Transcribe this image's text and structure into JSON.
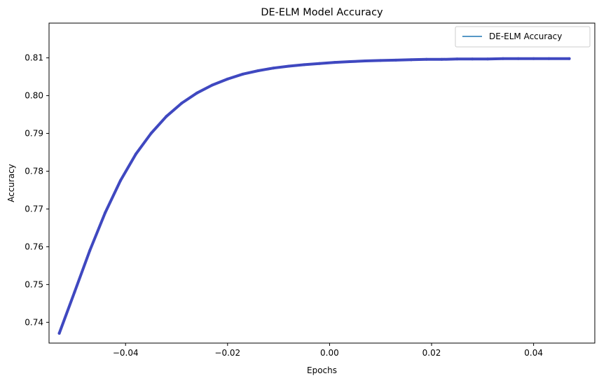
{
  "chart_data": {
    "type": "line",
    "title": "DE-ELM Model Accuracy",
    "xlabel": "Epochs",
    "ylabel": "Accuracy",
    "xlim": [
      -0.055,
      0.052
    ],
    "ylim": [
      0.7345,
      0.8192
    ],
    "xticks": [
      -0.04,
      -0.02,
      0.0,
      0.02,
      0.04
    ],
    "xtick_labels": [
      "−0.04",
      "−0.02",
      "0.00",
      "0.02",
      "0.04"
    ],
    "yticks": [
      0.74,
      0.75,
      0.76,
      0.77,
      0.78,
      0.79,
      0.8,
      0.81
    ],
    "yticks_labels": [
      "0.74",
      "0.75",
      "0.76",
      "0.77",
      "0.78",
      "0.79",
      "0.80",
      "0.81"
    ],
    "grid": false,
    "legend_position": "top-right",
    "series": [
      {
        "name": "DE-ELM Accuracy",
        "legend_color": "#1f77b4",
        "line_color": "#3f48c0",
        "x": [
          -0.053,
          -0.05,
          -0.047,
          -0.044,
          -0.041,
          -0.038,
          -0.035,
          -0.032,
          -0.029,
          -0.026,
          -0.023,
          -0.02,
          -0.017,
          -0.014,
          -0.011,
          -0.008,
          -0.005,
          -0.002,
          0.001,
          0.004,
          0.007,
          0.01,
          0.013,
          0.016,
          0.019,
          0.022,
          0.025,
          0.028,
          0.031,
          0.034,
          0.037,
          0.04,
          0.043,
          0.047
        ],
        "y": [
          0.7371,
          0.748,
          0.759,
          0.769,
          0.7775,
          0.7845,
          0.79,
          0.7945,
          0.798,
          0.8007,
          0.8028,
          0.8044,
          0.8057,
          0.8066,
          0.8073,
          0.8078,
          0.8082,
          0.8085,
          0.8088,
          0.809,
          0.8092,
          0.8093,
          0.8094,
          0.8095,
          0.8096,
          0.8096,
          0.8097,
          0.8097,
          0.8097,
          0.8098,
          0.8098,
          0.8098,
          0.8098,
          0.8098
        ]
      }
    ]
  }
}
